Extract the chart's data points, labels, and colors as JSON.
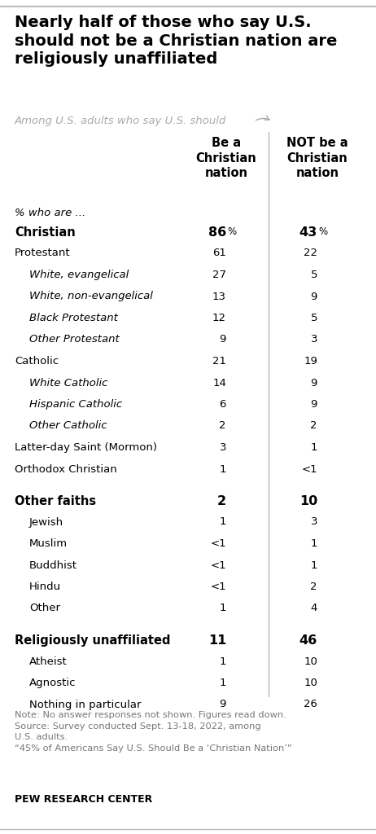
{
  "title": "Nearly half of those who say U.S.\nshould not be a Christian nation are\nreligiously unaffiliated",
  "subtitle": "Among U.S. adults who say U.S. should→",
  "col1_header": "Be a\nChristian\nnation",
  "col2_header": "NOT be a\nChristian\nnation",
  "pct_who_are": "% who are ...",
  "rows": [
    {
      "label": "Christian",
      "indent": 0,
      "bold": true,
      "italic": false,
      "col1": "86%",
      "col2": "43%"
    },
    {
      "label": "Protestant",
      "indent": 0,
      "bold": false,
      "italic": false,
      "col1": "61",
      "col2": "22"
    },
    {
      "label": "White, evangelical",
      "indent": 1,
      "bold": false,
      "italic": true,
      "col1": "27",
      "col2": "5"
    },
    {
      "label": "White, non-evangelical",
      "indent": 1,
      "bold": false,
      "italic": true,
      "col1": "13",
      "col2": "9"
    },
    {
      "label": "Black Protestant",
      "indent": 1,
      "bold": false,
      "italic": true,
      "col1": "12",
      "col2": "5"
    },
    {
      "label": "Other Protestant",
      "indent": 1,
      "bold": false,
      "italic": true,
      "col1": "9",
      "col2": "3"
    },
    {
      "label": "Catholic",
      "indent": 0,
      "bold": false,
      "italic": false,
      "col1": "21",
      "col2": "19"
    },
    {
      "label": "White Catholic",
      "indent": 1,
      "bold": false,
      "italic": true,
      "col1": "14",
      "col2": "9"
    },
    {
      "label": "Hispanic Catholic",
      "indent": 1,
      "bold": false,
      "italic": true,
      "col1": "6",
      "col2": "9"
    },
    {
      "label": "Other Catholic",
      "indent": 1,
      "bold": false,
      "italic": true,
      "col1": "2",
      "col2": "2"
    },
    {
      "label": "Latter-day Saint (Mormon)",
      "indent": 0,
      "bold": false,
      "italic": false,
      "col1": "3",
      "col2": "1"
    },
    {
      "label": "Orthodox Christian",
      "indent": 0,
      "bold": false,
      "italic": false,
      "col1": "1",
      "col2": "<1"
    },
    {
      "label": "Other faiths",
      "indent": 0,
      "bold": true,
      "italic": false,
      "col1": "2",
      "col2": "10"
    },
    {
      "label": "Jewish",
      "indent": 1,
      "bold": false,
      "italic": false,
      "col1": "1",
      "col2": "3"
    },
    {
      "label": "Muslim",
      "indent": 1,
      "bold": false,
      "italic": false,
      "col1": "<1",
      "col2": "1"
    },
    {
      "label": "Buddhist",
      "indent": 1,
      "bold": false,
      "italic": false,
      "col1": "<1",
      "col2": "1"
    },
    {
      "label": "Hindu",
      "indent": 1,
      "bold": false,
      "italic": false,
      "col1": "<1",
      "col2": "2"
    },
    {
      "label": "Other",
      "indent": 1,
      "bold": false,
      "italic": false,
      "col1": "1",
      "col2": "4"
    },
    {
      "label": "Religiously unaffiliated",
      "indent": 0,
      "bold": true,
      "italic": false,
      "col1": "11",
      "col2": "46"
    },
    {
      "label": "Atheist",
      "indent": 1,
      "bold": false,
      "italic": false,
      "col1": "1",
      "col2": "10"
    },
    {
      "label": "Agnostic",
      "indent": 1,
      "bold": false,
      "italic": false,
      "col1": "1",
      "col2": "10"
    },
    {
      "label": "Nothing in particular",
      "indent": 1,
      "bold": false,
      "italic": false,
      "col1": "9",
      "col2": "26"
    }
  ],
  "note": "Note: No answer responses not shown. Figures read down.\nSource: Survey conducted Sept. 13-18, 2022, among\nU.S. adults.\n“45% of Americans Say U.S. Should Be a ‘Christian Nation’”",
  "source_label": "PEW RESEARCH CENTER",
  "bg_color": "#ffffff",
  "text_color": "#000000",
  "note_color": "#777777",
  "divider_color": "#aaaaaa",
  "subtitle_color": "#aaaaaa",
  "top_border_color": "#bbbbbb",
  "bottom_border_color": "#bbbbbb"
}
